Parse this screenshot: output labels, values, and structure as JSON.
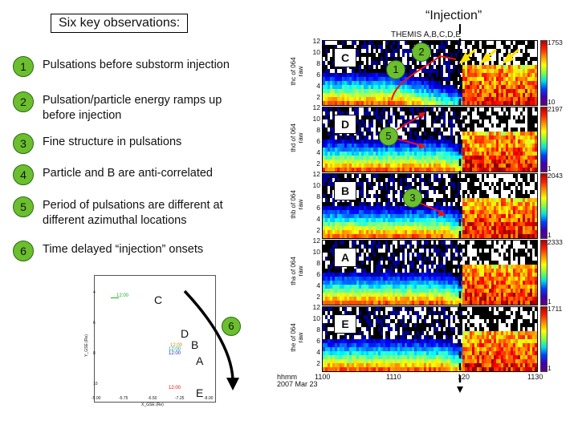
{
  "title": "Six key observations:",
  "observations": [
    {
      "num": "1",
      "text": "Pulsations before substorm injection"
    },
    {
      "num": "2",
      "text": "Pulsation/particle energy ramps up before injection"
    },
    {
      "num": "3",
      "text": "Fine structure in pulsations"
    },
    {
      "num": "4",
      "text": "Particle and B are anti-correlated"
    },
    {
      "num": "5",
      "text": "Period of pulsations are different at different azimuthal locations"
    },
    {
      "num": "6",
      "text": "Time delayed “injection” onsets"
    }
  ],
  "injection_label": "“Injection”",
  "header": "THEMIS A,B,C,D,E",
  "panels": [
    {
      "tag": "C",
      "ylabel": [
        "thc",
        "of",
        "064",
        "raw"
      ],
      "max": "1753",
      "min": "10"
    },
    {
      "tag": "D",
      "ylabel": [
        "thd",
        "of",
        "064",
        "raw"
      ],
      "max": "2197",
      "min": "1"
    },
    {
      "tag": "B",
      "ylabel": [
        "thb",
        "of",
        "064",
        "raw"
      ],
      "max": "2043",
      "min": "1"
    },
    {
      "tag": "A",
      "ylabel": [
        "tha",
        "of",
        "064",
        "raw"
      ],
      "max": "2333",
      "min": "1"
    },
    {
      "tag": "E",
      "ylabel": [
        "the",
        "of",
        "064",
        "raw"
      ],
      "max": "1711",
      "min": "1"
    }
  ],
  "yticks": [
    "12",
    "10",
    "8",
    "6",
    "4",
    "2"
  ],
  "xaxis": {
    "name": "hhmm",
    "date": "2007 Mar 23",
    "ticks": [
      "1100",
      "1110",
      "120",
      "1130"
    ]
  },
  "callouts": {
    "c1": "1",
    "c2": "2",
    "c3": "3",
    "c5": "5",
    "c6": "6"
  },
  "map": {
    "labels": {
      "C": "C",
      "D": "D",
      "B": "B",
      "A": "A",
      "E": "E"
    },
    "times": {
      "c": "12:00",
      "d": "12:00",
      "b": "12:00",
      "a": "12:00",
      "e": "12:00"
    },
    "xticks": [
      "-5.00",
      "-5.75",
      "-6.50",
      "-7.25",
      "-8.00"
    ],
    "yticks": [
      "4",
      "6",
      "8",
      "10"
    ],
    "xlabel": "X_GSE (Re)",
    "ylabel": "Y_GSE (Re)"
  },
  "colors": {
    "green": "#6bbf2e",
    "red": "#e11",
    "yellow": "#ffe400"
  }
}
